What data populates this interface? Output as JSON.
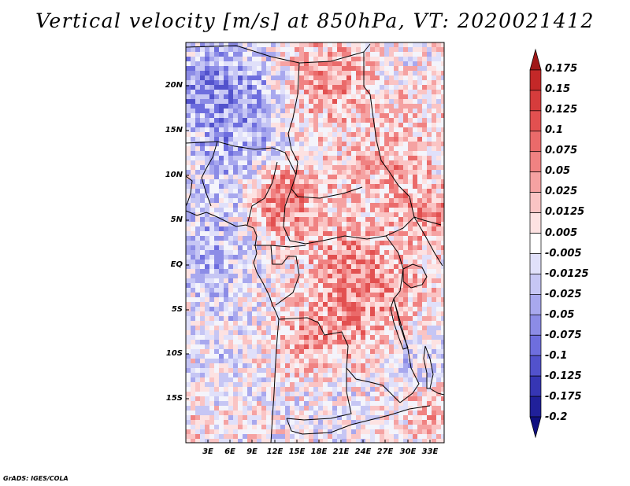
{
  "title": "Vertical velocity [m/s] at 850hPa, VT: 2020021412",
  "map": {
    "variable": "Vertical velocity",
    "units": "m/s",
    "level": "850hPa",
    "valid_time": "2020021412",
    "lat_labels": [
      "20N",
      "15N",
      "10N",
      "5N",
      "EQ",
      "5S",
      "10S",
      "15S"
    ],
    "lon_labels": [
      "3E",
      "6E",
      "9E",
      "12E",
      "15E",
      "18E",
      "21E",
      "24E",
      "27E",
      "30E",
      "33E"
    ]
  },
  "colorbar": {
    "labels": [
      "0.175",
      "0.15",
      "0.125",
      "0.1",
      "0.075",
      "0.05",
      "0.025",
      "0.0125",
      "0.005",
      "-0.005",
      "-0.0125",
      "-0.025",
      "-0.05",
      "-0.075",
      "-0.1",
      "-0.125",
      "-0.175",
      "-0.2"
    ],
    "colors": [
      "#a01818",
      "#c42828",
      "#d63c3c",
      "#e25050",
      "#ea6a6a",
      "#f08282",
      "#f5a2a2",
      "#fac4c4",
      "#fde2e2",
      "#ffffff",
      "#e0e0fa",
      "#c6c6f4",
      "#a8a8ee",
      "#8c8ce6",
      "#6e6ede",
      "#5252cc",
      "#3636b4",
      "#20209a",
      "#101080"
    ]
  },
  "credit": "GrADS: IGES/COLA"
}
